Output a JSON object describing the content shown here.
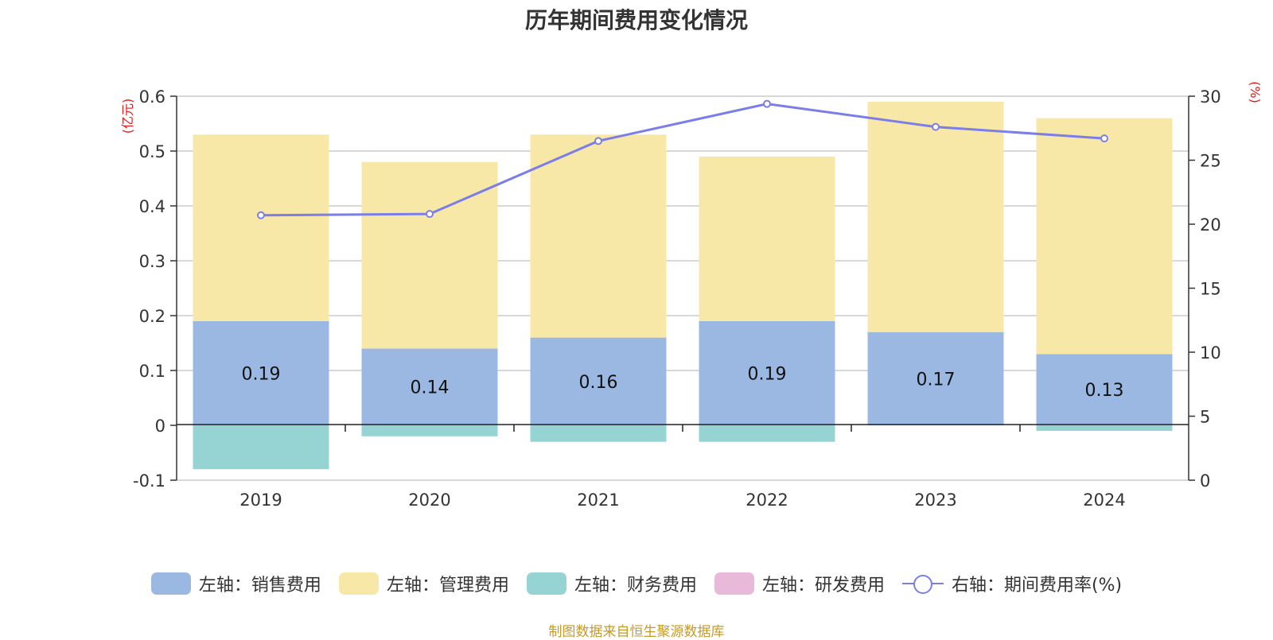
{
  "chart_data": {
    "type": "bar",
    "title": "历年期间费用变化情况",
    "categories": [
      "2019",
      "2020",
      "2021",
      "2022",
      "2023",
      "2024"
    ],
    "left_axis": {
      "unit_label": "(亿元)",
      "ylim": [
        -0.1,
        0.6
      ],
      "ticks": [
        -0.1,
        0,
        0.1,
        0.2,
        0.3,
        0.4,
        0.5,
        0.6
      ]
    },
    "right_axis": {
      "unit_label": "(%)",
      "ylim": [
        0,
        30
      ],
      "ticks": [
        0,
        5,
        10,
        15,
        20,
        25,
        30
      ]
    },
    "series": [
      {
        "name": "左轴：销售费用",
        "type": "bar",
        "color": "#9bb8e2",
        "values": [
          0.19,
          0.14,
          0.16,
          0.19,
          0.17,
          0.13
        ],
        "show_labels": true
      },
      {
        "name": "左轴：管理费用",
        "type": "bar",
        "color": "#f8e8a8",
        "values": [
          0.34,
          0.34,
          0.37,
          0.3,
          0.42,
          0.43
        ]
      },
      {
        "name": "左轴：财务费用",
        "type": "bar",
        "color": "#96d4d4",
        "values": [
          -0.08,
          -0.02,
          -0.03,
          -0.03,
          0.0,
          -0.01
        ]
      },
      {
        "name": "左轴：研发费用",
        "type": "bar",
        "color": "#e9b9da",
        "values": [
          0,
          0,
          0,
          0,
          0,
          0
        ]
      },
      {
        "name": "右轴：期间费用率(%)",
        "type": "line",
        "axis": "right",
        "color": "#7b7ee8",
        "values": [
          20.7,
          20.8,
          26.5,
          29.4,
          27.6,
          26.7
        ]
      }
    ],
    "grid": true,
    "legend_position": "bottom"
  },
  "source": "制图数据来自恒生聚源数据库"
}
